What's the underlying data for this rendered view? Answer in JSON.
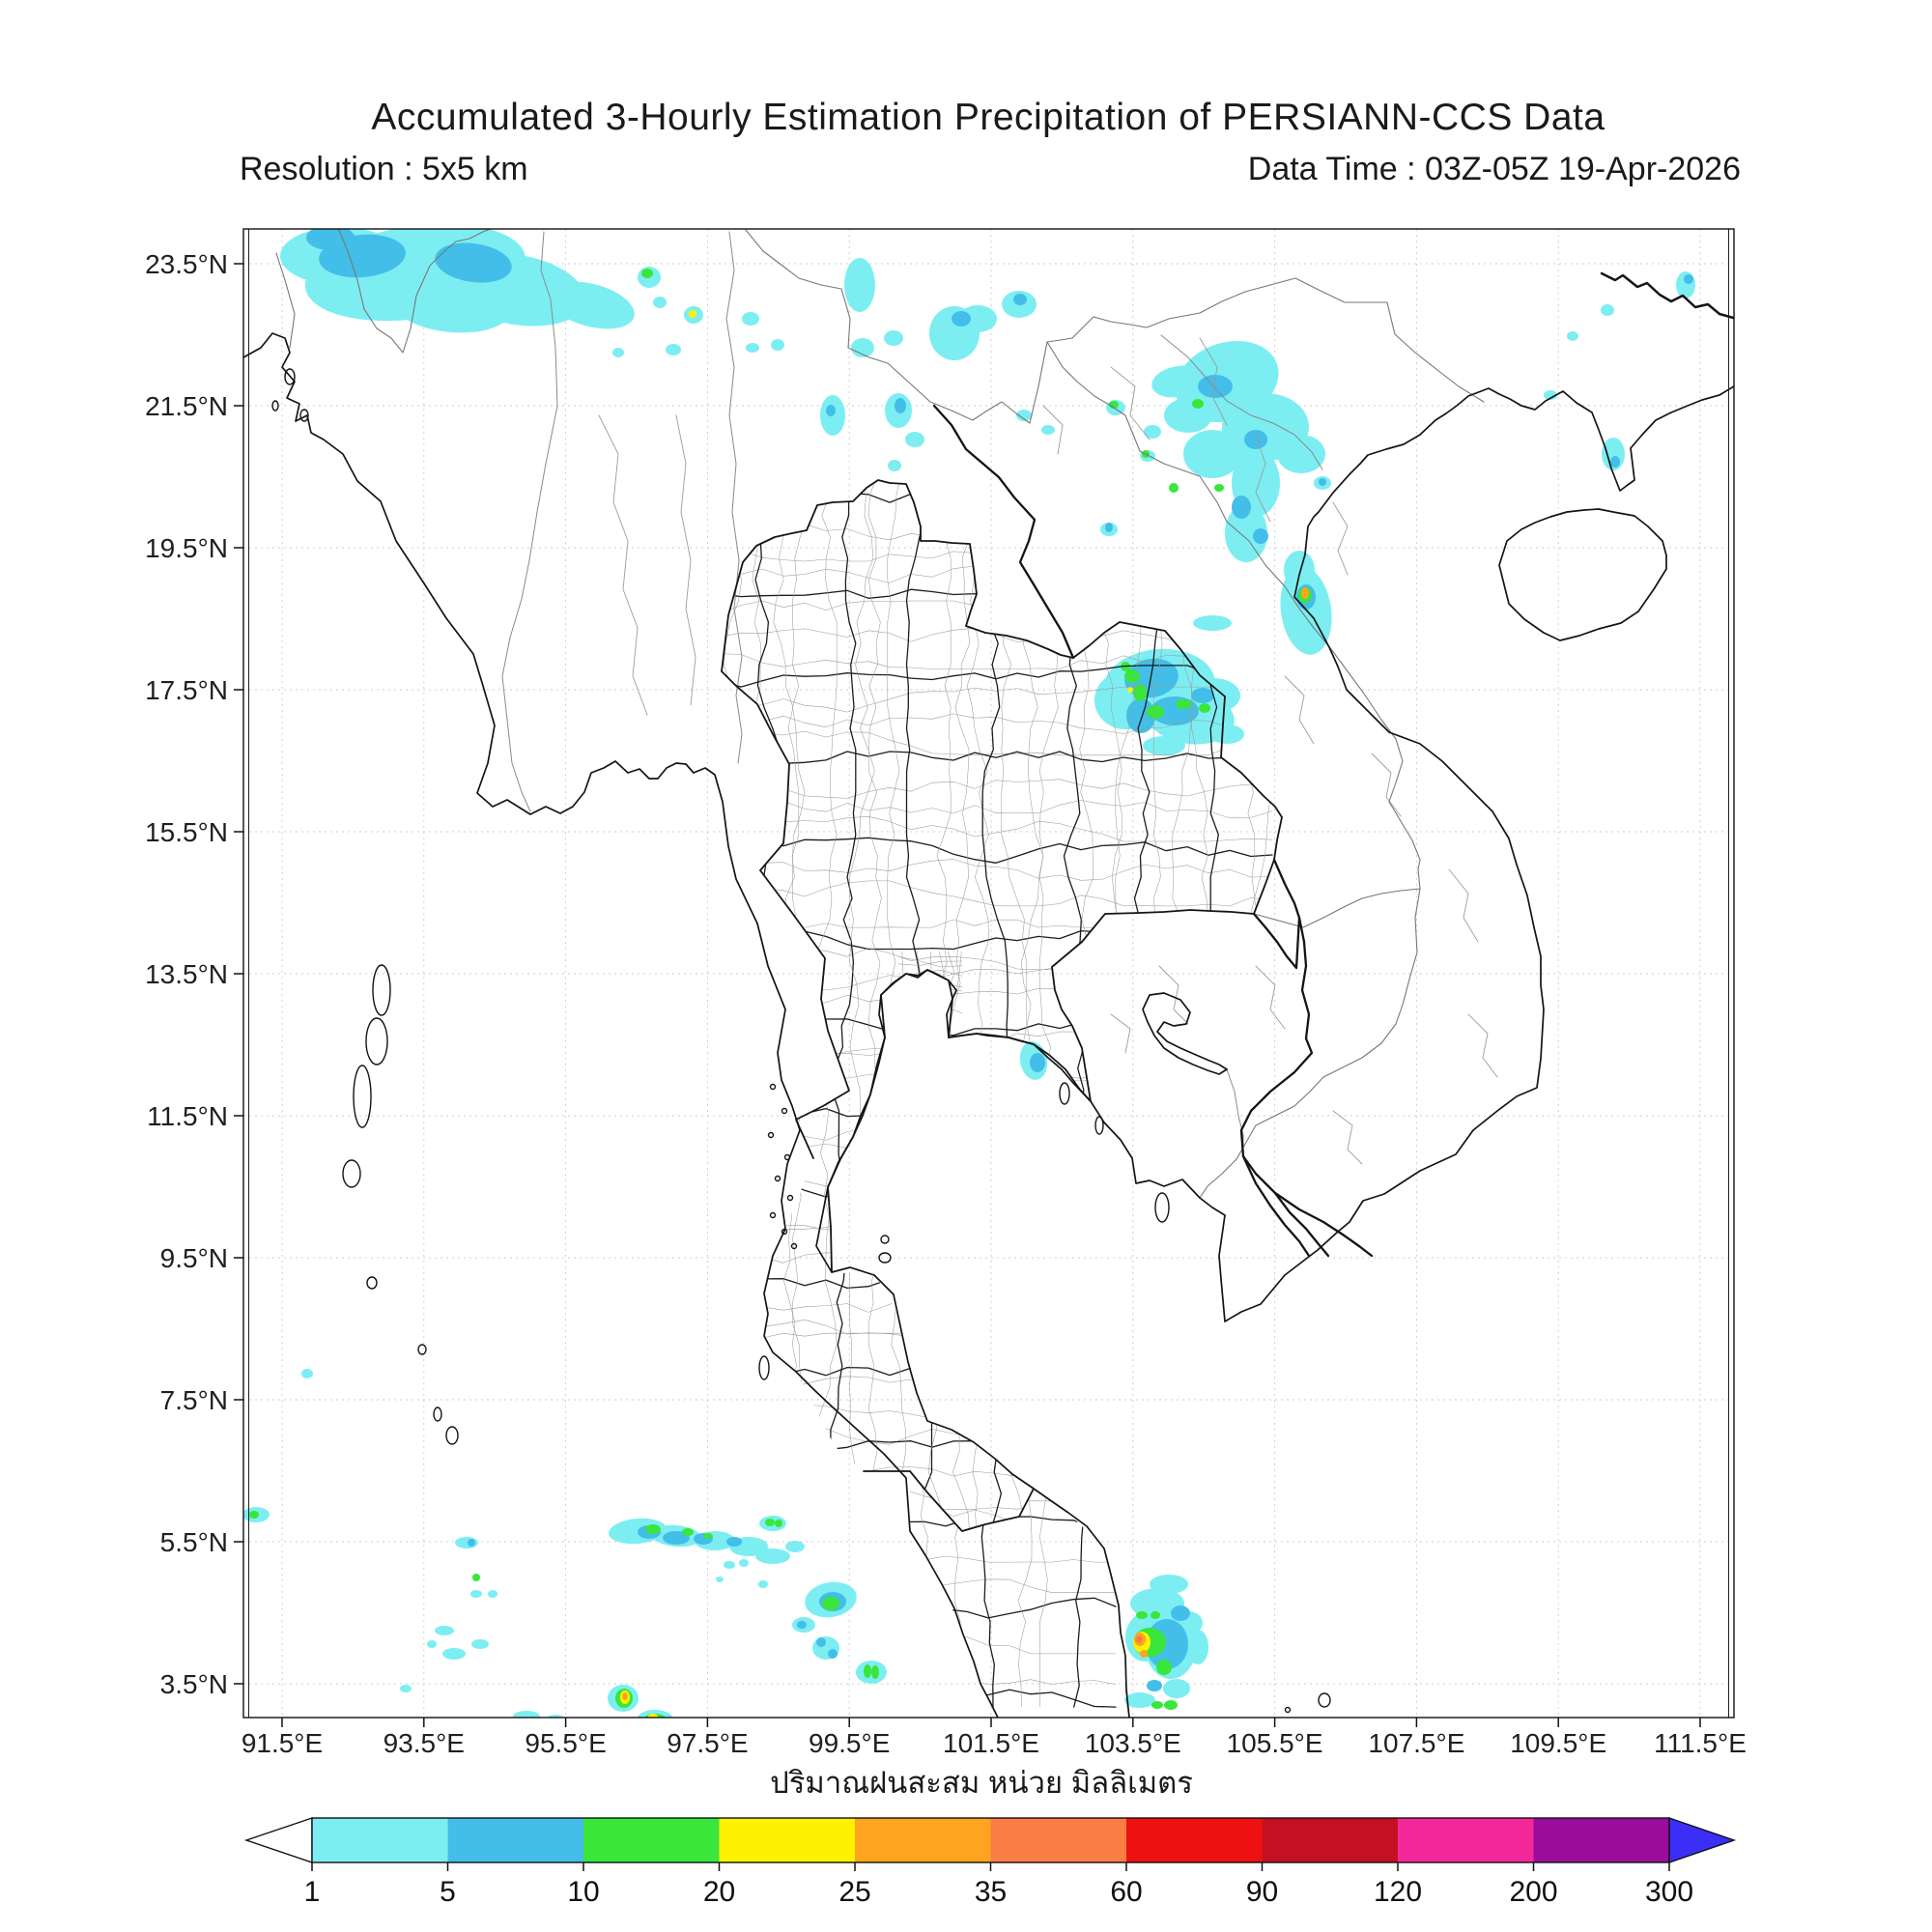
{
  "header": {
    "title": "Accumulated 3-Hourly Estimation Precipitation of PERSIANN-CCS Data",
    "resolution_label": "Resolution : 5x5 km",
    "datatime_label": "Data Time : 03Z-05Z 19-Apr-2026"
  },
  "axes": {
    "x_tick_labels": [
      "91.5°E",
      "93.5°E",
      "95.5°E",
      "97.5°E",
      "99.5°E",
      "101.5°E",
      "103.5°E",
      "105.5°E",
      "107.5°E",
      "109.5°E",
      "111.5°E"
    ],
    "y_tick_labels": [
      "23.5°N",
      "21.5°N",
      "19.5°N",
      "17.5°N",
      "15.5°N",
      "13.5°N",
      "11.5°N",
      "9.5°N",
      "7.5°N",
      "5.5°N",
      "3.5°N"
    ],
    "xlabel": "ปริมาณฝนสะสม หน่วย มิลลิเมตร"
  },
  "colorbar": {
    "tick_labels": [
      "1",
      "5",
      "10",
      "20",
      "25",
      "35",
      "60",
      "90",
      "120",
      "200",
      "300"
    ],
    "segment_colors": [
      "#7CEEF2",
      "#42BEE8",
      "#39E639",
      "#FFF200",
      "#FFA41E",
      "#F97E45",
      "#EE1111",
      "#C41022",
      "#F5289B",
      "#9A0C9A"
    ],
    "under_color": "#FFFFFF",
    "over_color": "#3B2FF7"
  },
  "map": {
    "level_colors": {
      "1": "#7CEEF2",
      "2": "#42BEE8",
      "3": "#39E639",
      "4": "#FFF200",
      "5": "#FFA41E",
      "6": "#F97E45"
    },
    "level_ranges_mm": {
      "1": "1-5",
      "2": "5-10",
      "3": "10-20",
      "4": "20-25",
      "5": "25-35",
      "6": "35-60"
    },
    "cells": [
      [
        1,
        430,
        282,
        115,
        48,
        -8
      ],
      [
        1,
        535,
        300,
        72,
        36,
        10
      ],
      [
        1,
        352,
        265,
        62,
        30,
        0
      ],
      [
        1,
        612,
        316,
        46,
        22,
        15
      ],
      [
        1,
        468,
        318,
        60,
        26,
        5
      ],
      [
        1,
        672,
        287,
        12,
        11,
        0
      ],
      [
        1,
        718,
        326,
        10,
        9,
        0
      ],
      [
        1,
        683,
        313,
        7,
        6,
        0
      ],
      [
        1,
        697,
        362,
        8,
        6,
        0
      ],
      [
        1,
        777,
        330,
        9,
        7,
        0
      ],
      [
        1,
        779,
        360,
        7,
        5,
        0
      ],
      [
        1,
        805,
        357,
        7,
        6,
        0
      ],
      [
        1,
        640,
        365,
        6,
        5,
        0
      ],
      [
        1,
        890,
        295,
        16,
        28,
        0
      ],
      [
        1,
        893,
        360,
        12,
        10,
        0
      ],
      [
        1,
        925,
        350,
        10,
        8,
        0
      ],
      [
        1,
        988,
        345,
        26,
        28,
        0
      ],
      [
        1,
        1012,
        330,
        20,
        14,
        0
      ],
      [
        1,
        1055,
        315,
        18,
        14,
        0
      ],
      [
        1,
        862,
        430,
        13,
        21,
        0
      ],
      [
        1,
        930,
        425,
        14,
        18,
        0
      ],
      [
        1,
        947,
        455,
        10,
        8,
        0
      ],
      [
        1,
        926,
        482,
        7,
        6,
        0
      ],
      [
        1,
        1060,
        430,
        8,
        6,
        0
      ],
      [
        1,
        1085,
        445,
        7,
        5,
        0
      ],
      [
        1,
        1270,
        395,
        55,
        40,
        -20
      ],
      [
        1,
        1310,
        442,
        45,
        35,
        0
      ],
      [
        1,
        1255,
        470,
        30,
        25,
        0
      ],
      [
        1,
        1300,
        500,
        25,
        35,
        0
      ],
      [
        1,
        1290,
        552,
        22,
        30,
        0
      ],
      [
        1,
        1230,
        430,
        25,
        18,
        0
      ],
      [
        1,
        1347,
        470,
        25,
        20,
        0
      ],
      [
        1,
        1220,
        395,
        28,
        16,
        -10
      ],
      [
        1,
        1155,
        422,
        10,
        8,
        0
      ],
      [
        1,
        1193,
        447,
        9,
        7,
        0
      ],
      [
        1,
        1188,
        472,
        8,
        6,
        0
      ],
      [
        1,
        1148,
        548,
        9,
        7,
        0
      ],
      [
        1,
        1369,
        500,
        9,
        7,
        0
      ],
      [
        1,
        1352,
        632,
        26,
        46,
        -8
      ],
      [
        1,
        1345,
        590,
        16,
        20,
        0
      ],
      [
        1,
        1745,
        295,
        10,
        14,
        0
      ],
      [
        1,
        1664,
        321,
        7,
        6,
        0
      ],
      [
        1,
        1628,
        348,
        6,
        5,
        0
      ],
      [
        1,
        1605,
        409,
        7,
        5,
        0
      ],
      [
        1,
        1670,
        470,
        12,
        17,
        0
      ],
      [
        1,
        1200,
        710,
        58,
        38,
        -5
      ],
      [
        1,
        1232,
        742,
        46,
        28,
        8
      ],
      [
        1,
        1165,
        725,
        32,
        30,
        0
      ],
      [
        1,
        1256,
        720,
        28,
        18,
        0
      ],
      [
        1,
        1270,
        760,
        18,
        10,
        0
      ],
      [
        1,
        1205,
        772,
        22,
        10,
        0
      ],
      [
        1,
        1255,
        645,
        20,
        8,
        0
      ],
      [
        1,
        1070,
        1098,
        14,
        20,
        -10
      ],
      [
        1,
        265,
        1568,
        14,
        8,
        0
      ],
      [
        1,
        318,
        1422,
        6,
        5,
        0
      ],
      [
        1,
        483,
        1597,
        12,
        6,
        0
      ],
      [
        1,
        493,
        1650,
        6,
        4,
        0
      ],
      [
        1,
        510,
        1650,
        5,
        4,
        0
      ],
      [
        1,
        460,
        1688,
        10,
        5,
        0
      ],
      [
        1,
        470,
        1712,
        12,
        6,
        0
      ],
      [
        1,
        497,
        1702,
        9,
        5,
        0
      ],
      [
        1,
        420,
        1748,
        6,
        4,
        0
      ],
      [
        1,
        447,
        1702,
        5,
        4,
        0
      ],
      [
        1,
        545,
        1777,
        14,
        6,
        0
      ],
      [
        1,
        575,
        1780,
        10,
        5,
        0
      ],
      [
        1,
        660,
        1585,
        30,
        13,
        -5
      ],
      [
        1,
        700,
        1590,
        26,
        11,
        5
      ],
      [
        1,
        740,
        1595,
        21,
        10,
        0
      ],
      [
        1,
        775,
        1601,
        20,
        10,
        0
      ],
      [
        1,
        800,
        1611,
        18,
        8,
        0
      ],
      [
        1,
        823,
        1601,
        10,
        6,
        0
      ],
      [
        1,
        800,
        1577,
        14,
        8,
        0
      ],
      [
        1,
        755,
        1620,
        6,
        4,
        0
      ],
      [
        1,
        770,
        1618,
        5,
        4,
        0
      ],
      [
        1,
        790,
        1640,
        5,
        4,
        0
      ],
      [
        1,
        745,
        1635,
        4,
        3,
        0
      ],
      [
        1,
        860,
        1656,
        27,
        18,
        -10
      ],
      [
        1,
        832,
        1682,
        12,
        8,
        0
      ],
      [
        1,
        855,
        1706,
        14,
        12,
        0
      ],
      [
        1,
        902,
        1731,
        16,
        12,
        0
      ],
      [
        1,
        645,
        1758,
        16,
        14,
        0
      ],
      [
        1,
        678,
        1779,
        18,
        9,
        0
      ],
      [
        1,
        1198,
        1660,
        28,
        16,
        0
      ],
      [
        1,
        1212,
        1702,
        27,
        36,
        0
      ],
      [
        1,
        1185,
        1695,
        20,
        25,
        0
      ],
      [
        1,
        1218,
        1748,
        14,
        10,
        0
      ],
      [
        1,
        1180,
        1760,
        16,
        8,
        0
      ],
      [
        1,
        1230,
        1680,
        15,
        12,
        0
      ],
      [
        1,
        1240,
        1705,
        11,
        18,
        0
      ],
      [
        1,
        1210,
        1640,
        20,
        10,
        0
      ],
      [
        2,
        375,
        265,
        45,
        22,
        -5
      ],
      [
        2,
        490,
        272,
        40,
        20,
        8
      ],
      [
        2,
        342,
        246,
        25,
        13,
        0
      ],
      [
        2,
        995,
        330,
        10,
        8,
        0
      ],
      [
        2,
        1056,
        310,
        7,
        6,
        0
      ],
      [
        2,
        932,
        420,
        6,
        8,
        0
      ],
      [
        2,
        860,
        425,
        5,
        6,
        0
      ],
      [
        2,
        1258,
        400,
        18,
        12,
        0
      ],
      [
        2,
        1300,
        455,
        12,
        10,
        0
      ],
      [
        2,
        1285,
        525,
        10,
        12,
        0
      ],
      [
        2,
        1305,
        555,
        8,
        8,
        0
      ],
      [
        2,
        1369,
        499,
        4,
        4,
        0
      ],
      [
        2,
        1148,
        546,
        4,
        5,
        0
      ],
      [
        2,
        1352,
        618,
        10,
        13,
        0
      ],
      [
        2,
        1748,
        289,
        5,
        5,
        0
      ],
      [
        2,
        1672,
        478,
        5,
        6,
        0
      ],
      [
        2,
        1192,
        702,
        28,
        20,
        -10
      ],
      [
        2,
        1216,
        736,
        25,
        15,
        0
      ],
      [
        2,
        1181,
        741,
        15,
        18,
        0
      ],
      [
        2,
        1245,
        720,
        12,
        8,
        0
      ],
      [
        2,
        1074,
        1100,
        8,
        10,
        0
      ],
      [
        2,
        488,
        1597,
        4,
        4,
        0
      ],
      [
        2,
        672,
        1586,
        12,
        7,
        0
      ],
      [
        2,
        700,
        1592,
        14,
        7,
        0
      ],
      [
        2,
        728,
        1593,
        10,
        6,
        0
      ],
      [
        2,
        760,
        1596,
        8,
        5,
        0
      ],
      [
        2,
        862,
        1658,
        14,
        10,
        0
      ],
      [
        2,
        830,
        1682,
        5,
        4,
        0
      ],
      [
        2,
        850,
        1700,
        5,
        5,
        0
      ],
      [
        2,
        862,
        1712,
        5,
        5,
        0
      ],
      [
        2,
        1208,
        1702,
        22,
        26,
        0
      ],
      [
        2,
        1222,
        1670,
        10,
        8,
        0
      ],
      [
        2,
        1195,
        1745,
        8,
        6,
        0
      ],
      [
        3,
        670,
        283,
        6,
        5,
        0
      ],
      [
        3,
        1153,
        419,
        5,
        4,
        0
      ],
      [
        3,
        1186,
        470,
        4,
        4,
        0
      ],
      [
        3,
        1240,
        418,
        6,
        5,
        0
      ],
      [
        3,
        1215,
        505,
        5,
        5,
        0
      ],
      [
        3,
        1262,
        505,
        5,
        4,
        0
      ],
      [
        3,
        1351,
        616,
        7,
        8,
        0
      ],
      [
        3,
        1172,
        700,
        8,
        7,
        0
      ],
      [
        3,
        1180,
        717,
        7,
        9,
        0
      ],
      [
        3,
        1196,
        737,
        9,
        7,
        0
      ],
      [
        3,
        1225,
        729,
        8,
        5,
        0
      ],
      [
        3,
        1247,
        733,
        6,
        5,
        0
      ],
      [
        3,
        1165,
        690,
        5,
        5,
        0
      ],
      [
        3,
        263,
        1568,
        5,
        4,
        0
      ],
      [
        3,
        493,
        1633,
        4,
        4,
        0
      ],
      [
        3,
        676,
        1583,
        8,
        5,
        0
      ],
      [
        3,
        712,
        1586,
        6,
        4,
        0
      ],
      [
        3,
        733,
        1590,
        5,
        3,
        0
      ],
      [
        3,
        797,
        1576,
        5,
        4,
        0
      ],
      [
        3,
        806,
        1577,
        4,
        4,
        0
      ],
      [
        3,
        860,
        1660,
        9,
        7,
        0
      ],
      [
        3,
        898,
        1730,
        4,
        7,
        0
      ],
      [
        3,
        906,
        1731,
        4,
        7,
        0
      ],
      [
        3,
        646,
        1758,
        9,
        10,
        0
      ],
      [
        3,
        678,
        1779,
        11,
        5,
        0
      ],
      [
        3,
        1190,
        1700,
        17,
        15,
        0
      ],
      [
        3,
        1205,
        1726,
        8,
        8,
        0
      ],
      [
        3,
        1182,
        1672,
        6,
        4,
        0
      ],
      [
        3,
        1196,
        1672,
        5,
        4,
        0
      ],
      [
        3,
        1212,
        1765,
        7,
        5,
        0
      ],
      [
        3,
        1198,
        1765,
        6,
        4,
        0
      ],
      [
        4,
        717,
        325,
        4,
        4,
        0
      ],
      [
        4,
        1170,
        714,
        3,
        3,
        0
      ],
      [
        4,
        647,
        1757,
        5,
        7,
        0
      ],
      [
        4,
        676,
        1777,
        5,
        3,
        0
      ],
      [
        4,
        1182,
        1700,
        9,
        11,
        0
      ],
      [
        5,
        1351,
        614,
        4,
        6,
        0
      ],
      [
        5,
        647,
        1756,
        3,
        4,
        0
      ],
      [
        5,
        1180,
        1697,
        6,
        7,
        0
      ],
      [
        5,
        1184,
        1712,
        4,
        4,
        0
      ],
      [
        6,
        1179,
        1697,
        3,
        4,
        0
      ]
    ]
  }
}
